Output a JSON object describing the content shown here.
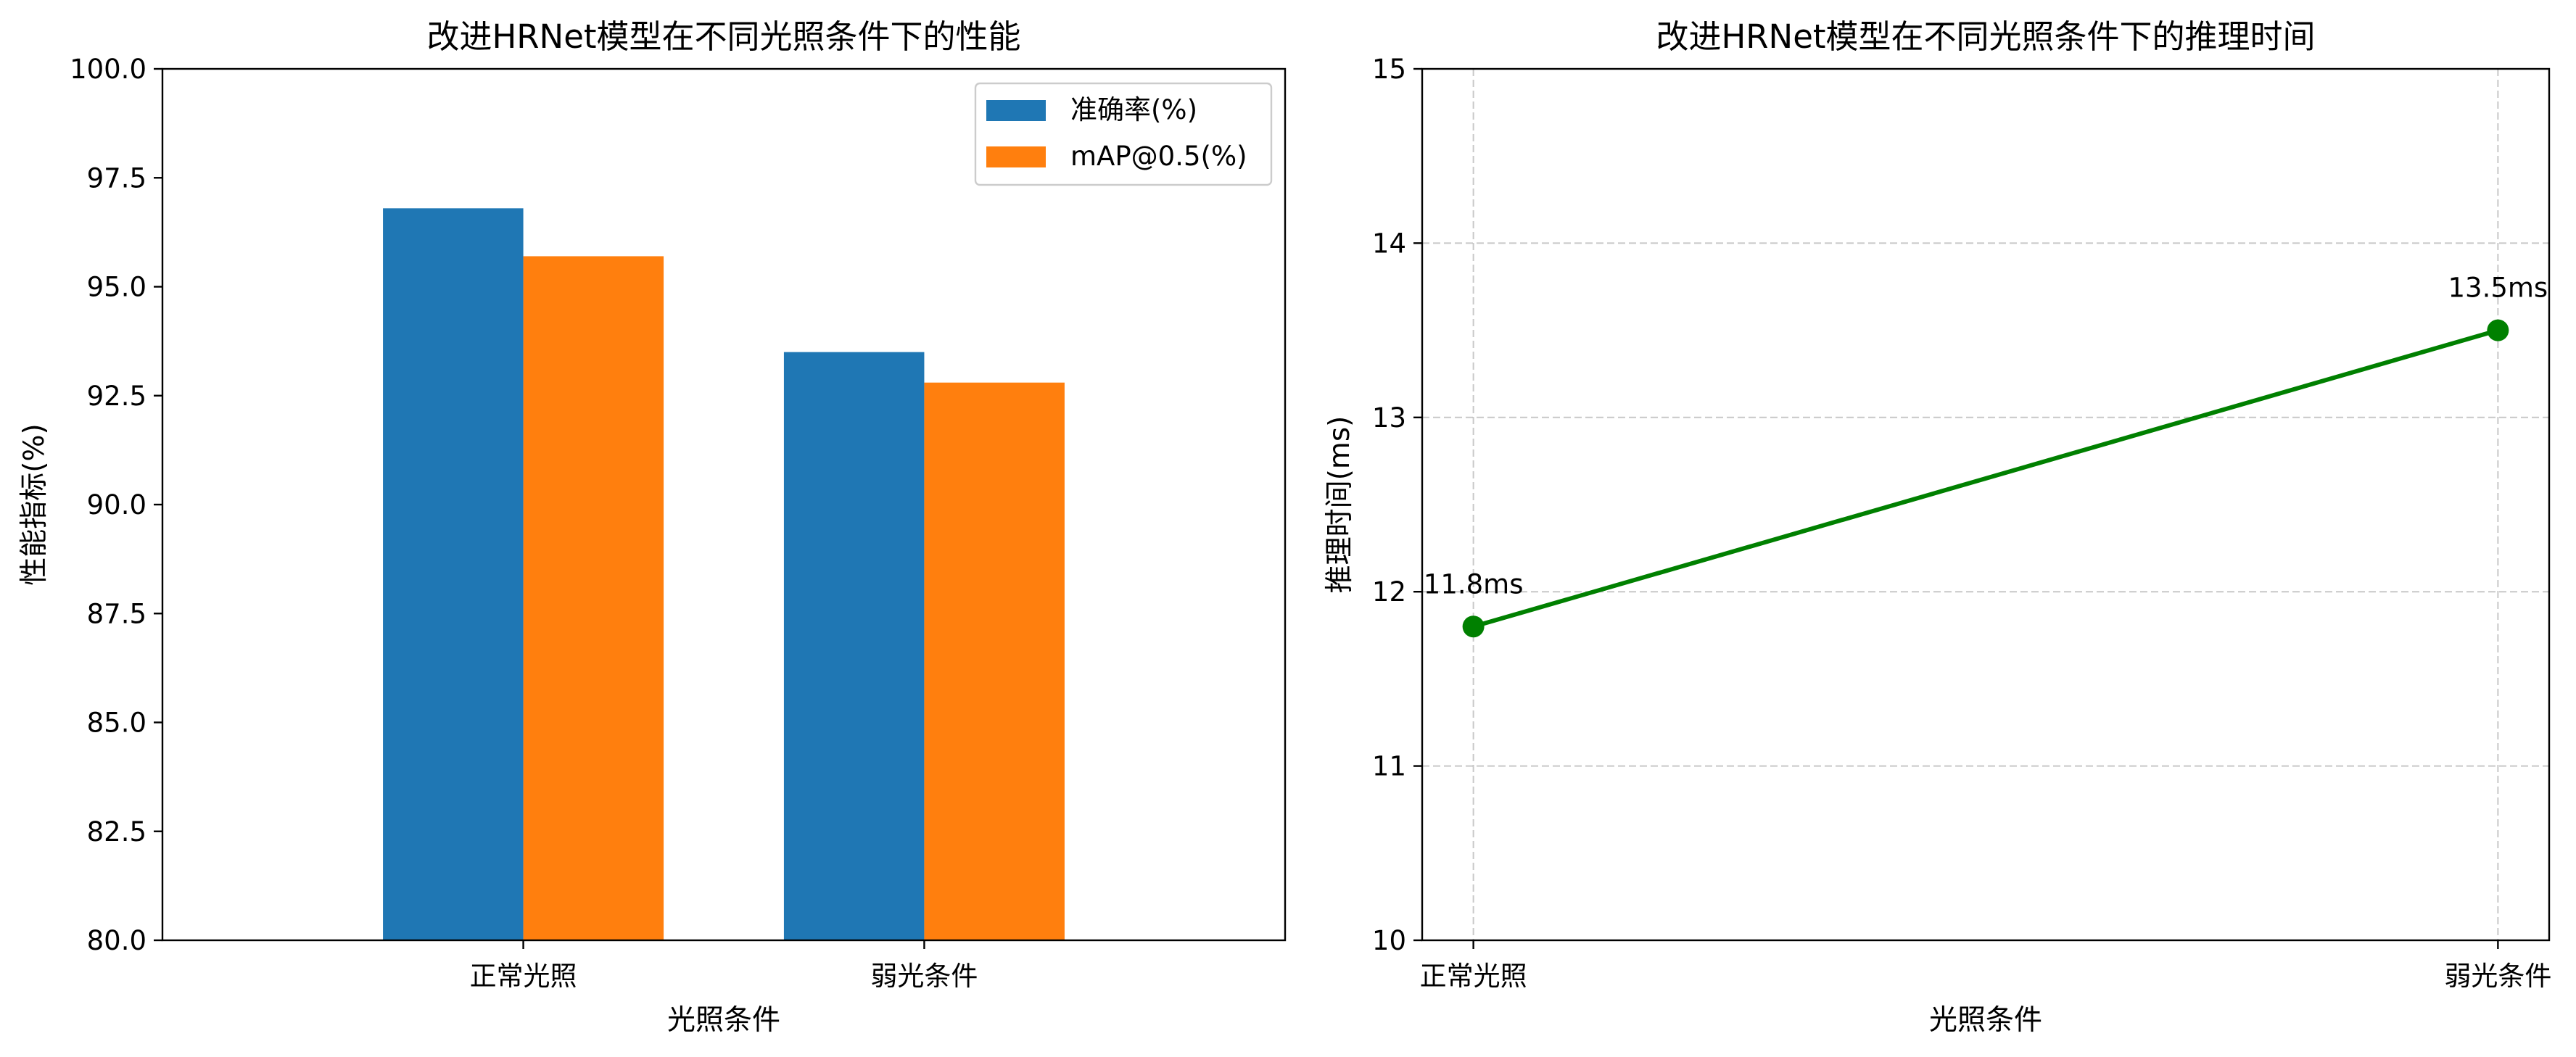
{
  "chart_data": [
    {
      "type": "bar",
      "title": "改进HRNet模型在不同光照条件下的性能",
      "xlabel": "光照条件",
      "ylabel": "性能指标(%)",
      "categories": [
        "正常光照",
        "弱光条件"
      ],
      "series": [
        {
          "name": "准确率(%)",
          "values": [
            96.8,
            93.5
          ],
          "color": "#1f77b4"
        },
        {
          "name": "mAP@0.5(%)",
          "values": [
            95.7,
            92.8
          ],
          "color": "#ff7f0e"
        }
      ],
      "ylim": [
        80.0,
        100.0
      ],
      "yticks": [
        "80.0",
        "82.5",
        "85.0",
        "87.5",
        "90.0",
        "92.5",
        "95.0",
        "97.5",
        "100.0"
      ],
      "grid": false,
      "legend_position": "top-right"
    },
    {
      "type": "line",
      "title": "改进HRNet模型在不同光照条件下的推理时间",
      "xlabel": "光照条件",
      "ylabel": "推理时间(ms)",
      "categories": [
        "正常光照",
        "弱光条件"
      ],
      "series": [
        {
          "values": [
            11.8,
            13.5
          ],
          "color": "#008000"
        }
      ],
      "annotations": [
        "11.8ms",
        "13.5ms"
      ],
      "ylim": [
        10,
        15
      ],
      "yticks": [
        "10",
        "11",
        "12",
        "13",
        "14",
        "15"
      ],
      "grid": true,
      "grid_style": "dashed"
    }
  ]
}
